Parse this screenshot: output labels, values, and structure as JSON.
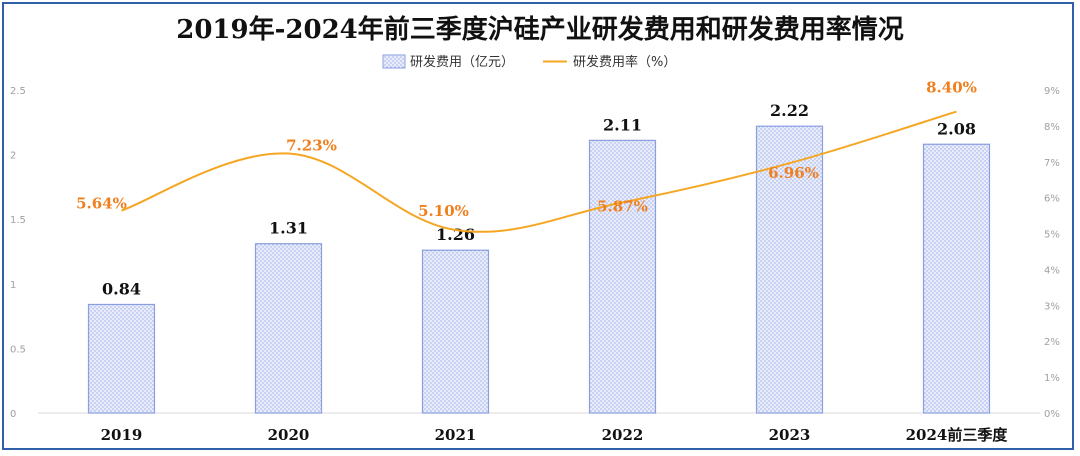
{
  "chart_data": {
    "type": "bar",
    "title": "2019年-2024年前三季度沪硅产业研发费用和研发费用率情况",
    "categories": [
      "2019",
      "2020",
      "2021",
      "2022",
      "2023",
      "2024前三季度"
    ],
    "series": [
      {
        "name": "研发费用（亿元）",
        "type": "bar",
        "axis": "left",
        "values": [
          0.84,
          1.31,
          1.26,
          2.11,
          2.22,
          2.08
        ],
        "labels": [
          "0.84",
          "1.31",
          "1.26",
          "2.11",
          "2.22",
          "2.08"
        ],
        "color": "#8a9ee0"
      },
      {
        "name": "研发费用率（%）",
        "type": "line",
        "axis": "right",
        "values": [
          5.64,
          7.23,
          5.1,
          5.87,
          6.96,
          8.4
        ],
        "labels": [
          "5.64%",
          "7.23%",
          "5.10%",
          "5.87%",
          "6.96%",
          "8.40%"
        ],
        "color": "#f5a623"
      }
    ],
    "y_left": {
      "range": [
        0,
        2.5
      ],
      "ticks": [
        "0",
        "0.5",
        "1",
        "1.5",
        "2",
        "2.5"
      ]
    },
    "y_right": {
      "range": [
        0,
        9
      ],
      "ticks": [
        "0%",
        "1%",
        "2%",
        "3%",
        "4%",
        "5%",
        "6%",
        "7%",
        "8%",
        "9%"
      ]
    },
    "legend_position": "top-center",
    "grid": false,
    "colors": {
      "frame": "#2e5fa8",
      "bar_fill": "#e4e9fa",
      "bar_border": "#8a9ee0",
      "line": "#f5a623",
      "line_label": "#f07f1e",
      "axis_text": "#a0a0a0",
      "text": "#111111"
    }
  }
}
